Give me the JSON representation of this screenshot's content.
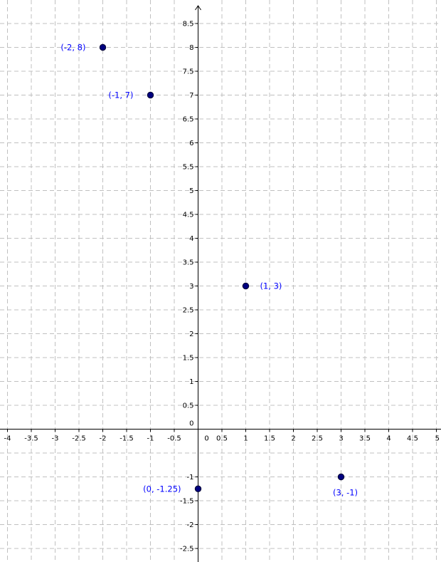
{
  "chart_data": {
    "type": "scatter",
    "xlim": [
      -4,
      5
    ],
    "ylim": [
      -2.5,
      8.5
    ],
    "x_ticks": [
      "-4",
      "-3.5",
      "-3",
      "-2.5",
      "-2",
      "-1.5",
      "-1",
      "-0.5",
      "0",
      "0.5",
      "1",
      "1.5",
      "2",
      "2.5",
      "3",
      "3.5",
      "4",
      "4.5",
      "5"
    ],
    "y_ticks": [
      "-2.5",
      "-2",
      "-1.5",
      "-1",
      "0",
      "0.5",
      "1",
      "1.5",
      "2",
      "2.5",
      "3",
      "3.5",
      "4",
      "4.5",
      "5",
      "5.5",
      "6",
      "6.5",
      "7",
      "7.5",
      "8",
      "8.5"
    ],
    "grid": true,
    "point_color": "#00007f",
    "label_color": "#0000ff",
    "points": [
      {
        "x": -2,
        "y": 8,
        "label": "(-2, 8)",
        "label_position": "left"
      },
      {
        "x": -1,
        "y": 7,
        "label": "(-1, 7)",
        "label_position": "left"
      },
      {
        "x": 1,
        "y": 3,
        "label": "(1, 3)",
        "label_position": "right"
      },
      {
        "x": 0,
        "y": -1.25,
        "label": "(0, -1.25)",
        "label_position": "left"
      },
      {
        "x": 3,
        "y": -1,
        "label": "(3, -1)",
        "label_position": "below"
      }
    ]
  }
}
